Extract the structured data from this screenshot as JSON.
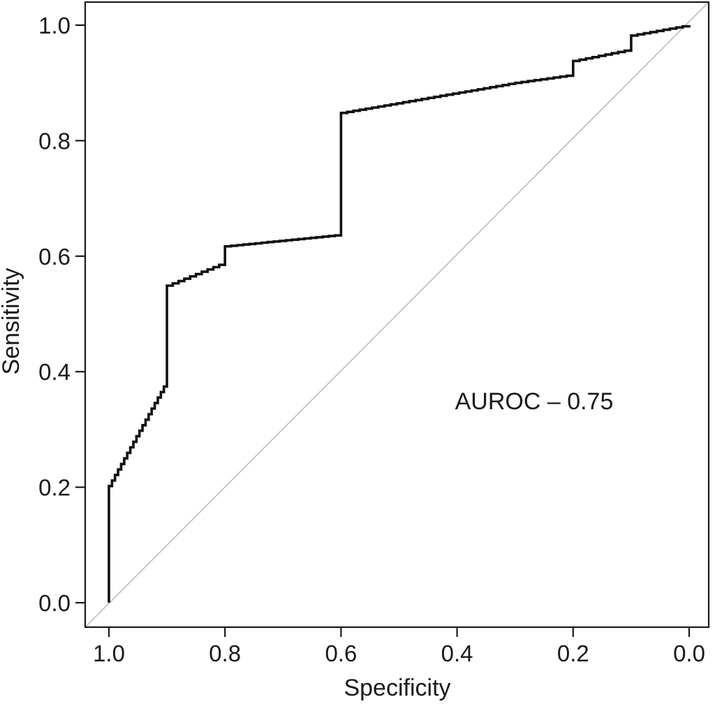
{
  "figure": {
    "kind": "ROC curve plot",
    "background": "#ffffff"
  },
  "colors": {
    "text": "#1a1a1a",
    "axis": "#1a1a1a",
    "curve": "#111111",
    "reference_line": "#b4b4b4"
  },
  "chart_data": {
    "type": "line",
    "subtype": "roc-curve-steps",
    "title": "",
    "xlabel": "Specificity",
    "ylabel": "Sensitivity",
    "x_axis_reversed": true,
    "xlim": [
      1.0,
      0.0
    ],
    "ylim": [
      0.0,
      1.0
    ],
    "x_ticks": [
      "1.0",
      "0.8",
      "0.6",
      "0.4",
      "0.2",
      "0.0"
    ],
    "y_ticks": [
      "0.0",
      "0.2",
      "0.4",
      "0.6",
      "0.8",
      "1.0"
    ],
    "grid": false,
    "legend": false,
    "annotation": {
      "text": "AUROC – 0.75",
      "auroc_value": 0.75,
      "at_specificity": 0.27,
      "at_sensitivity": 0.34
    },
    "series": [
      {
        "name": "Empirical ROC curve",
        "color": "#111111",
        "style": "stepped",
        "points_spec_sens": [
          [
            1.0,
            0.0
          ],
          [
            1.0,
            0.202
          ],
          [
            0.9,
            0.384
          ],
          [
            0.9,
            0.549
          ],
          [
            0.8,
            0.589
          ],
          [
            0.8,
            0.617
          ],
          [
            0.6,
            0.637
          ],
          [
            0.6,
            0.848
          ],
          [
            0.3,
            0.9
          ],
          [
            0.2,
            0.914
          ],
          [
            0.2,
            0.938
          ],
          [
            0.1,
            0.958
          ],
          [
            0.1,
            0.982
          ],
          [
            0.0,
            1.0
          ]
        ]
      },
      {
        "name": "Chance reference diagonal",
        "color": "#b4b4b4",
        "style": "thin-line",
        "points_spec_sens": [
          [
            1.0,
            0.0
          ],
          [
            0.0,
            1.0
          ]
        ]
      }
    ]
  }
}
